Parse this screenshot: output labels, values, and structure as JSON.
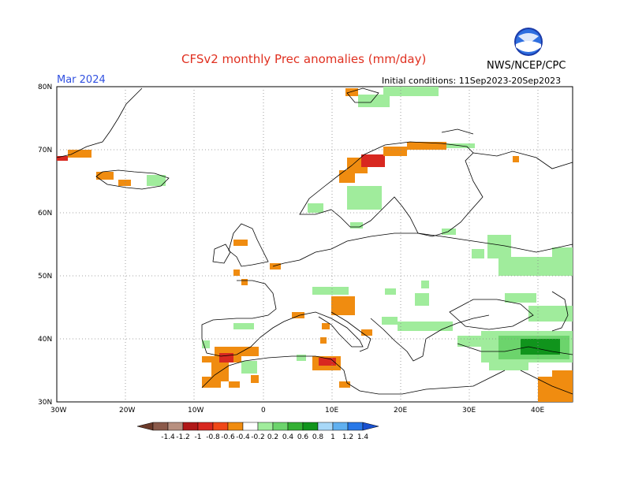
{
  "title": "CFSv2 monthly Prec anomalies (mm/day)",
  "month": "Mar 2024",
  "initial_conditions": "Initial conditions: 11Sep2023-20Sep2023",
  "agency": "NWS/NCEP/CPC",
  "logo_text": "NOAA",
  "lat_labels": [
    "80N",
    "70N",
    "60N",
    "50N",
    "40N",
    "30N"
  ],
  "lon_labels": [
    "30W",
    "20W",
    "10W",
    "0",
    "10E",
    "20E",
    "30E",
    "40E"
  ],
  "colorbar": {
    "labels": [
      "-1.4",
      "-1.2",
      "-1",
      "-0.8",
      "-0.6",
      "-0.4",
      "-0.2",
      "0.2",
      "0.4",
      "0.6",
      "0.8",
      "1",
      "1.2",
      "1.4"
    ],
    "colors": [
      "#6b3a2a",
      "#8b5a4a",
      "#b89080",
      "#b01818",
      "#d82820",
      "#f04818",
      "#f08c10",
      "#ffffff",
      "#a0ec9c",
      "#6cd46c",
      "#34b034",
      "#10941c",
      "#a8d8f8",
      "#60b0f0",
      "#2878e8",
      "#1850d0"
    ]
  },
  "colors": {
    "dry_strong": "#d82820",
    "dry": "#f08c10",
    "wet": "#a0ec9c",
    "wet_more": "#6cd46c",
    "wet_strong": "#10941c"
  }
}
